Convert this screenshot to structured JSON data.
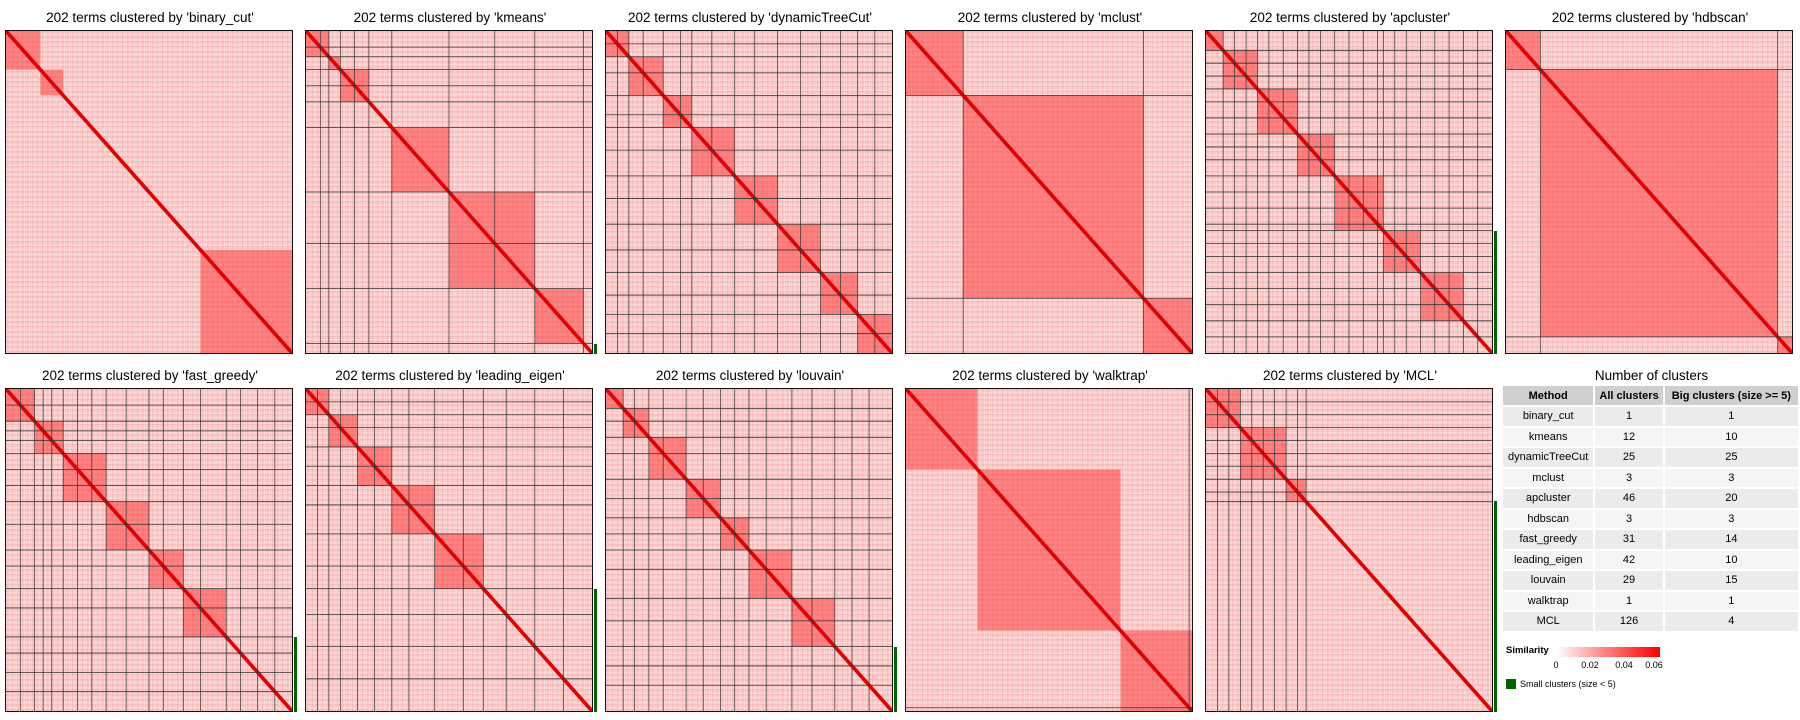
{
  "panels": [
    {
      "title": "202 terms clustered by 'binary_cut'",
      "small_clusters_frac": 0
    },
    {
      "title": "202 terms clustered by 'kmeans'",
      "small_clusters_frac": 0.03
    },
    {
      "title": "202 terms clustered by 'dynamicTreeCut'",
      "small_clusters_frac": 0
    },
    {
      "title": "202 terms clustered by 'mclust'",
      "small_clusters_frac": 0
    },
    {
      "title": "202 terms clustered by 'apcluster'",
      "small_clusters_frac": 0.38
    },
    {
      "title": "202 terms clustered by 'hdbscan'",
      "small_clusters_frac": 0
    },
    {
      "title": "202 terms clustered by 'fast_greedy'",
      "small_clusters_frac": 0.23
    },
    {
      "title": "202 terms clustered by 'leading_eigen'",
      "small_clusters_frac": 0.38
    },
    {
      "title": "202 terms clustered by 'louvain'",
      "small_clusters_frac": 0.2
    },
    {
      "title": "202 terms clustered by 'walktrap'",
      "small_clusters_frac": 0
    },
    {
      "title": "202 terms clustered by 'MCL'",
      "small_clusters_frac": 0.65
    }
  ],
  "table": {
    "title": "Number of clusters",
    "headers": [
      "Method",
      "All clusters",
      "Big clusters (size >= 5)"
    ],
    "rows": [
      [
        "binary_cut",
        "1",
        "1"
      ],
      [
        "kmeans",
        "12",
        "10"
      ],
      [
        "dynamicTreeCut",
        "25",
        "25"
      ],
      [
        "mclust",
        "3",
        "3"
      ],
      [
        "apcluster",
        "46",
        "20"
      ],
      [
        "hdbscan",
        "3",
        "3"
      ],
      [
        "fast_greedy",
        "31",
        "14"
      ],
      [
        "leading_eigen",
        "42",
        "10"
      ],
      [
        "louvain",
        "29",
        "15"
      ],
      [
        "walktrap",
        "1",
        "1"
      ],
      [
        "MCL",
        "126",
        "4"
      ]
    ]
  },
  "legend": {
    "similarity_title": "Similarity",
    "ticks": [
      "0",
      "0.02",
      "0.04",
      "0.06"
    ],
    "small_clusters_label": "Small clusters (size < 5)",
    "colors": {
      "low": "#ffffff",
      "high": "#ff0000",
      "small_clusters": "#006400"
    }
  },
  "chart_data": {
    "type": "heatmap",
    "n_terms": 202,
    "color_scale": {
      "min": 0,
      "max": 0.06,
      "low": "#ffffff",
      "high": "#ff0000"
    },
    "methods": [
      "binary_cut",
      "kmeans",
      "dynamicTreeCut",
      "mclust",
      "apcluster",
      "hdbscan",
      "fast_greedy",
      "leading_eigen",
      "louvain",
      "walktrap",
      "MCL"
    ],
    "all_clusters": [
      1,
      12,
      25,
      3,
      46,
      3,
      31,
      42,
      29,
      1,
      126
    ],
    "big_clusters": [
      1,
      10,
      25,
      3,
      20,
      3,
      14,
      10,
      15,
      1,
      4
    ],
    "legend_placement": "bottom-right"
  }
}
